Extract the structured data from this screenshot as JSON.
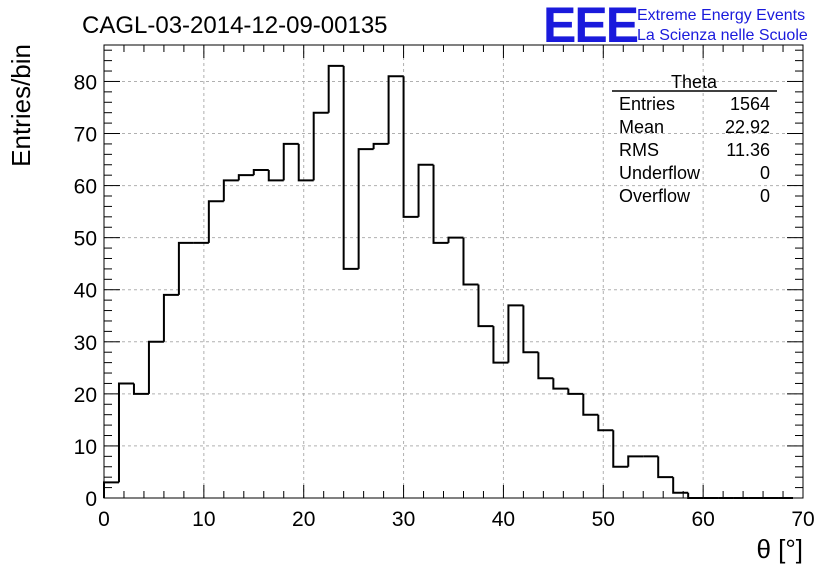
{
  "chart_data": {
    "type": "bar",
    "title": "CAGL-03-2014-12-09-00135",
    "xlabel": "θ [°]",
    "ylabel": "Entries/bin",
    "xlim": [
      0,
      70
    ],
    "ylim": [
      0,
      87
    ],
    "bin_width": 1.5,
    "x_start": 0,
    "xticks": [
      "0",
      "10",
      "20",
      "30",
      "40",
      "50",
      "60",
      "70"
    ],
    "yticks": [
      "0",
      "10",
      "20",
      "30",
      "40",
      "50",
      "60",
      "70",
      "80"
    ],
    "grid": true,
    "values": [
      3,
      22,
      20,
      30,
      39,
      49,
      49,
      57,
      61,
      62,
      63,
      61,
      68,
      61,
      74,
      83,
      44,
      67,
      68,
      81,
      54,
      64,
      49,
      50,
      41,
      33,
      26,
      37,
      28,
      23,
      21,
      20,
      16,
      13,
      6,
      8,
      8,
      4,
      1,
      0,
      0,
      0,
      0,
      0,
      0,
      0
    ],
    "stats": {
      "title": "Theta",
      "rows": [
        {
          "label": "Entries",
          "value": "1564"
        },
        {
          "label": "Mean",
          "value": "22.92"
        },
        {
          "label": "RMS",
          "value": "11.36"
        },
        {
          "label": "Underflow",
          "value": "0"
        },
        {
          "label": "Overflow",
          "value": "0"
        }
      ]
    }
  },
  "logo": {
    "mark": "EEE",
    "line1": "Extreme Energy Events",
    "line2": "La Scienza nelle Scuole",
    "color": "#1a1adc"
  }
}
